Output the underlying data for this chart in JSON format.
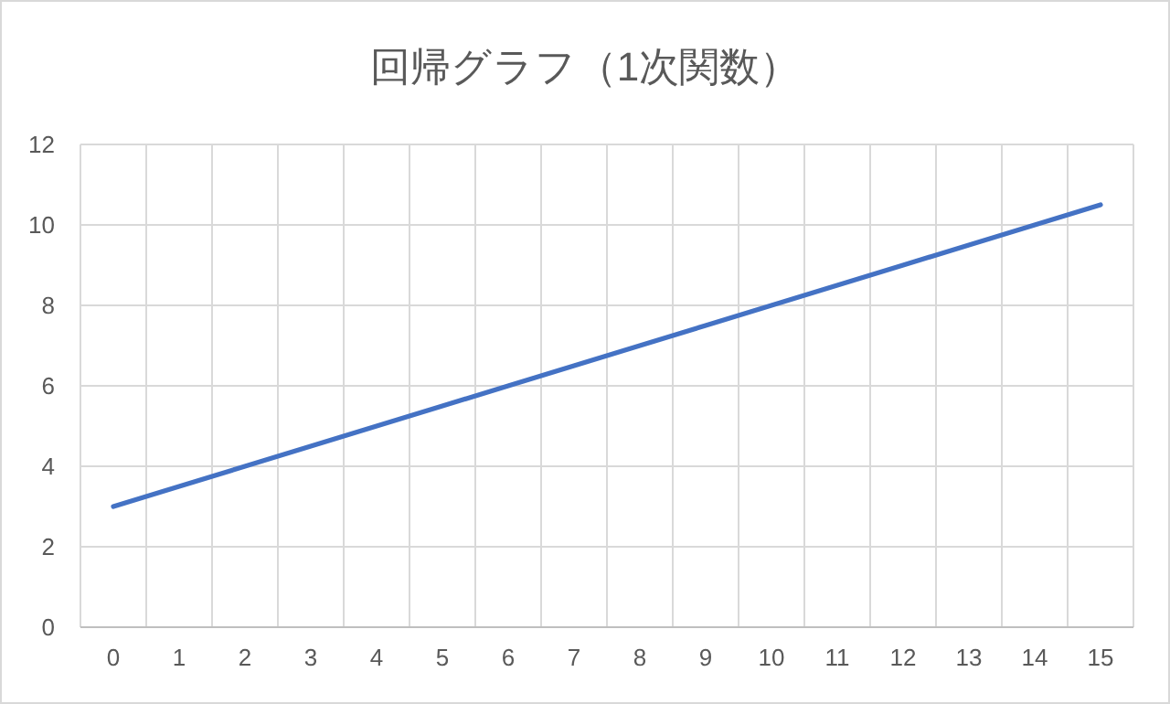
{
  "chart_data": {
    "type": "line",
    "title": "回帰グラフ（1次関数）",
    "categories": [
      "0",
      "1",
      "2",
      "3",
      "4",
      "5",
      "6",
      "7",
      "8",
      "9",
      "10",
      "11",
      "12",
      "13",
      "14",
      "15"
    ],
    "series": [
      {
        "color": "#4472c4",
        "values": [
          3,
          3.5,
          4,
          4.5,
          5,
          5.5,
          6,
          6.5,
          7,
          7.5,
          8,
          8.5,
          9,
          9.5,
          10,
          10.5
        ]
      }
    ],
    "ylim": [
      0,
      12
    ],
    "yticks": [
      0,
      2,
      4,
      6,
      8,
      10,
      12
    ],
    "grid": true,
    "marker": "none",
    "line_style": "solid"
  }
}
